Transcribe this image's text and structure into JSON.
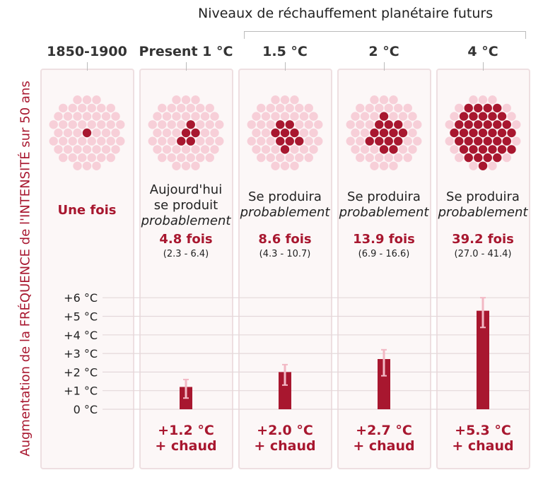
{
  "title": "Niveaux de réchauffement planétaire futurs",
  "y_title": "Augmentation de la FRÉQUENCE de l'INTENSITÉ sur 50 ans",
  "columns": [
    {
      "label": "1850-1900",
      "line1": "",
      "line2": "",
      "italic": "",
      "fois": "Une fois",
      "range": "",
      "warming": "",
      "chaud": "",
      "red_dots": 1
    },
    {
      "label": "Present 1 °C",
      "line1": "Aujourd'hui",
      "line2": "se produit",
      "italic": "probablement",
      "fois": "4.8 fois",
      "range": "(2.3 - 6.4)",
      "warming": "+1.2 °C",
      "chaud": "+ chaud",
      "red_dots": 5
    },
    {
      "label": "1.5 °C",
      "line1": "Se produira",
      "line2": "",
      "italic": "probablement",
      "fois": "8.6 fois",
      "range": "(4.3 - 10.7)",
      "warming": "+2.0 °C",
      "chaud": "+ chaud",
      "red_dots": 9
    },
    {
      "label": "2 °C",
      "line1": "Se produira",
      "line2": "",
      "italic": "probablement",
      "fois": "13.9 fois",
      "range": "(6.9 - 16.6)",
      "warming": "+2.7 °C",
      "chaud": "+ chaud",
      "red_dots": 14
    },
    {
      "label": "4 °C",
      "line1": "Se produira",
      "line2": "",
      "italic": "probablement",
      "fois": "39.2 fois",
      "range": "(27.0 - 41.4)",
      "warming": "+5.3 °C",
      "chaud": "+ chaud",
      "red_dots": 39
    }
  ],
  "chart_data": {
    "type": "bar",
    "categories": [
      "Present 1 °C",
      "1.5 °C",
      "2 °C",
      "4 °C"
    ],
    "values": [
      1.2,
      2.0,
      2.7,
      5.3
    ],
    "error_low": [
      0.6,
      1.3,
      1.8,
      4.4
    ],
    "error_high": [
      1.6,
      2.4,
      3.2,
      6.0
    ],
    "ylim": [
      0,
      6
    ],
    "ytick_labels": [
      "0 °C",
      "+1 °C",
      "+2 °C",
      "+3 °C",
      "+4 °C",
      "+5 °C",
      "+6 °C"
    ],
    "grid": true
  },
  "colors": {
    "red": "#a8172f",
    "pink": "#f7cfd8",
    "err": "#f2b8c4"
  }
}
